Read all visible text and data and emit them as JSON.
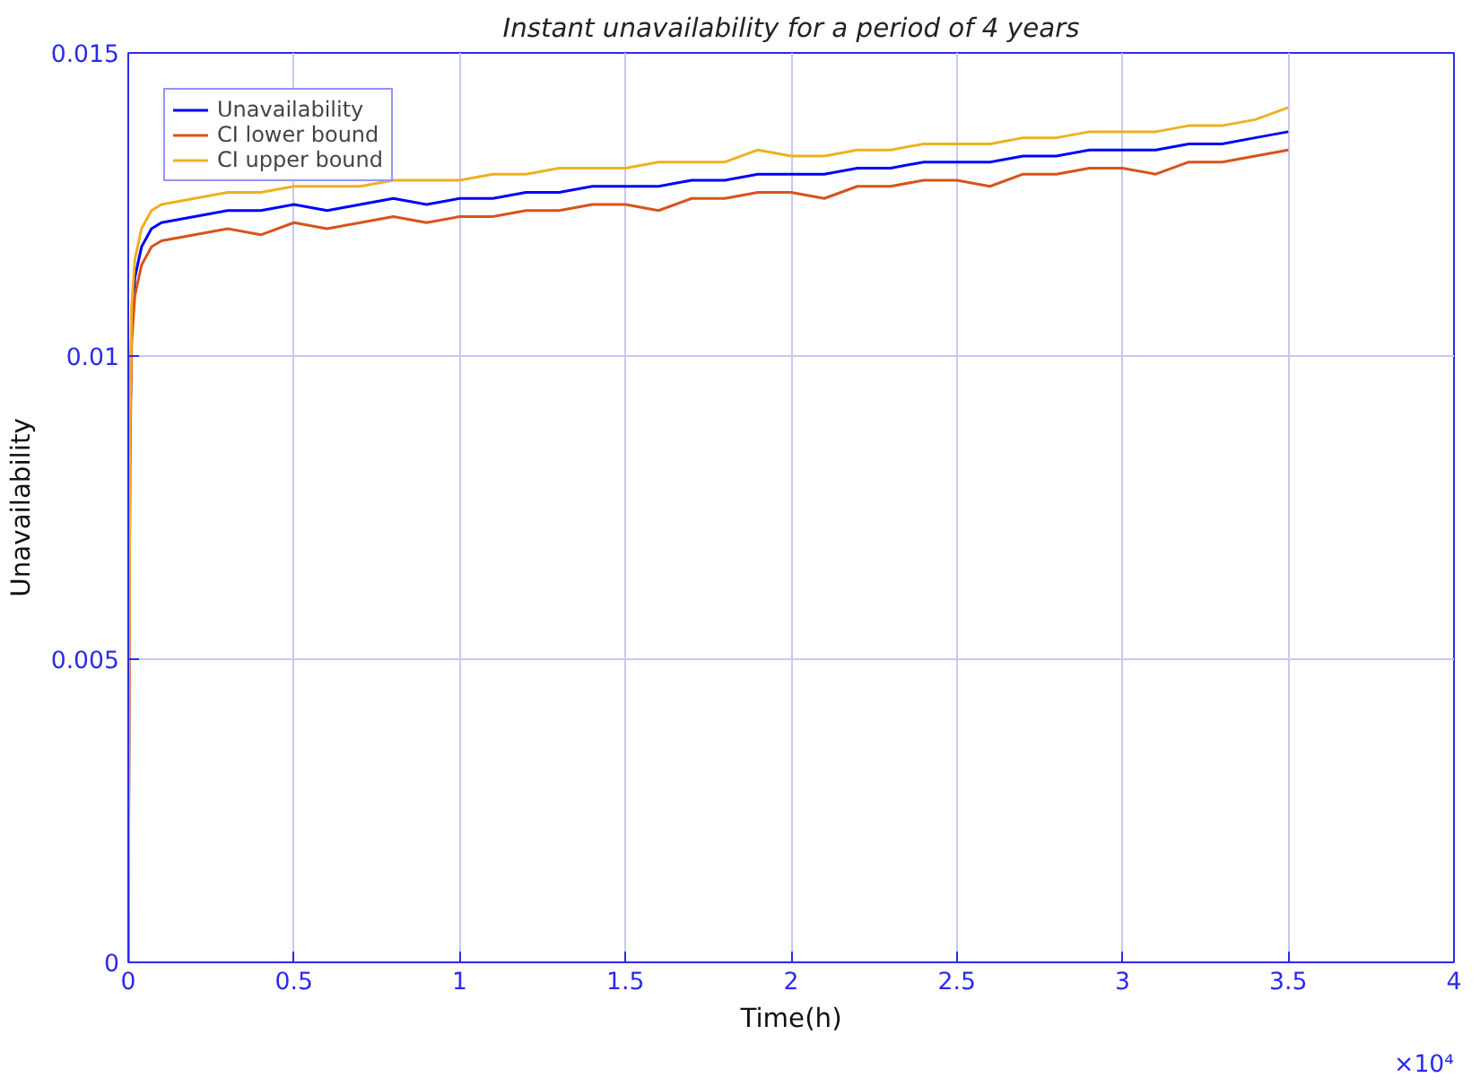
{
  "chart_data": {
    "type": "line",
    "title": "Instant unavailability for a period of 4 years",
    "xlabel": "Time(h)",
    "ylabel": "Unavailability",
    "annotations": [
      "×10⁴"
    ],
    "x": [
      0,
      0.005,
      0.01,
      0.02,
      0.04,
      0.07,
      0.1,
      0.2,
      0.3,
      0.4,
      0.5,
      0.6,
      0.7,
      0.8,
      0.9,
      1.0,
      1.1,
      1.2,
      1.3,
      1.4,
      1.5,
      1.6,
      1.7,
      1.8,
      1.9,
      2.0,
      2.1,
      2.2,
      2.3,
      2.4,
      2.5,
      2.6,
      2.7,
      2.8,
      2.9,
      3.0,
      3.1,
      3.2,
      3.3,
      3.4,
      3.5
    ],
    "series": [
      {
        "name": "Unavailability",
        "color": "#0000ff",
        "values": [
          0,
          0.0085,
          0.0105,
          0.0113,
          0.0118,
          0.0121,
          0.0122,
          0.0123,
          0.0124,
          0.0124,
          0.0125,
          0.0124,
          0.0125,
          0.0126,
          0.0125,
          0.0126,
          0.0126,
          0.0127,
          0.0127,
          0.0128,
          0.0128,
          0.0128,
          0.0129,
          0.0129,
          0.013,
          0.013,
          0.013,
          0.0131,
          0.0131,
          0.0132,
          0.0132,
          0.0132,
          0.0133,
          0.0133,
          0.0134,
          0.0134,
          0.0134,
          0.0135,
          0.0135,
          0.0136,
          0.0137
        ]
      },
      {
        "name": "CI lower bound",
        "color": "#d95319",
        "values": [
          0,
          0.0082,
          0.0102,
          0.011,
          0.0115,
          0.0118,
          0.0119,
          0.012,
          0.0121,
          0.012,
          0.0122,
          0.0121,
          0.0122,
          0.0123,
          0.0122,
          0.0123,
          0.0123,
          0.0124,
          0.0124,
          0.0125,
          0.0125,
          0.0124,
          0.0126,
          0.0126,
          0.0127,
          0.0127,
          0.0126,
          0.0128,
          0.0128,
          0.0129,
          0.0129,
          0.0128,
          0.013,
          0.013,
          0.0131,
          0.0131,
          0.013,
          0.0132,
          0.0132,
          0.0133,
          0.0134
        ]
      },
      {
        "name": "CI upper bound",
        "color": "#edb120",
        "values": [
          0,
          0.0088,
          0.0108,
          0.0116,
          0.0121,
          0.0124,
          0.0125,
          0.0126,
          0.0127,
          0.0127,
          0.0128,
          0.0128,
          0.0128,
          0.0129,
          0.0129,
          0.0129,
          0.013,
          0.013,
          0.0131,
          0.0131,
          0.0131,
          0.0132,
          0.0132,
          0.0132,
          0.0134,
          0.0133,
          0.0133,
          0.0134,
          0.0134,
          0.0135,
          0.0135,
          0.0135,
          0.0136,
          0.0136,
          0.0137,
          0.0137,
          0.0137,
          0.0138,
          0.0138,
          0.0139,
          0.0141
        ]
      }
    ],
    "xlim": [
      0,
      4
    ],
    "xticks": [
      0,
      0.5,
      1,
      1.5,
      2,
      2.5,
      3,
      3.5,
      4
    ],
    "ylim": [
      0,
      0.015
    ],
    "yticks": [
      0,
      0.005,
      0.01,
      0.015
    ],
    "grid": true,
    "legend": "top left",
    "line_style": "solid",
    "marker": "none"
  }
}
